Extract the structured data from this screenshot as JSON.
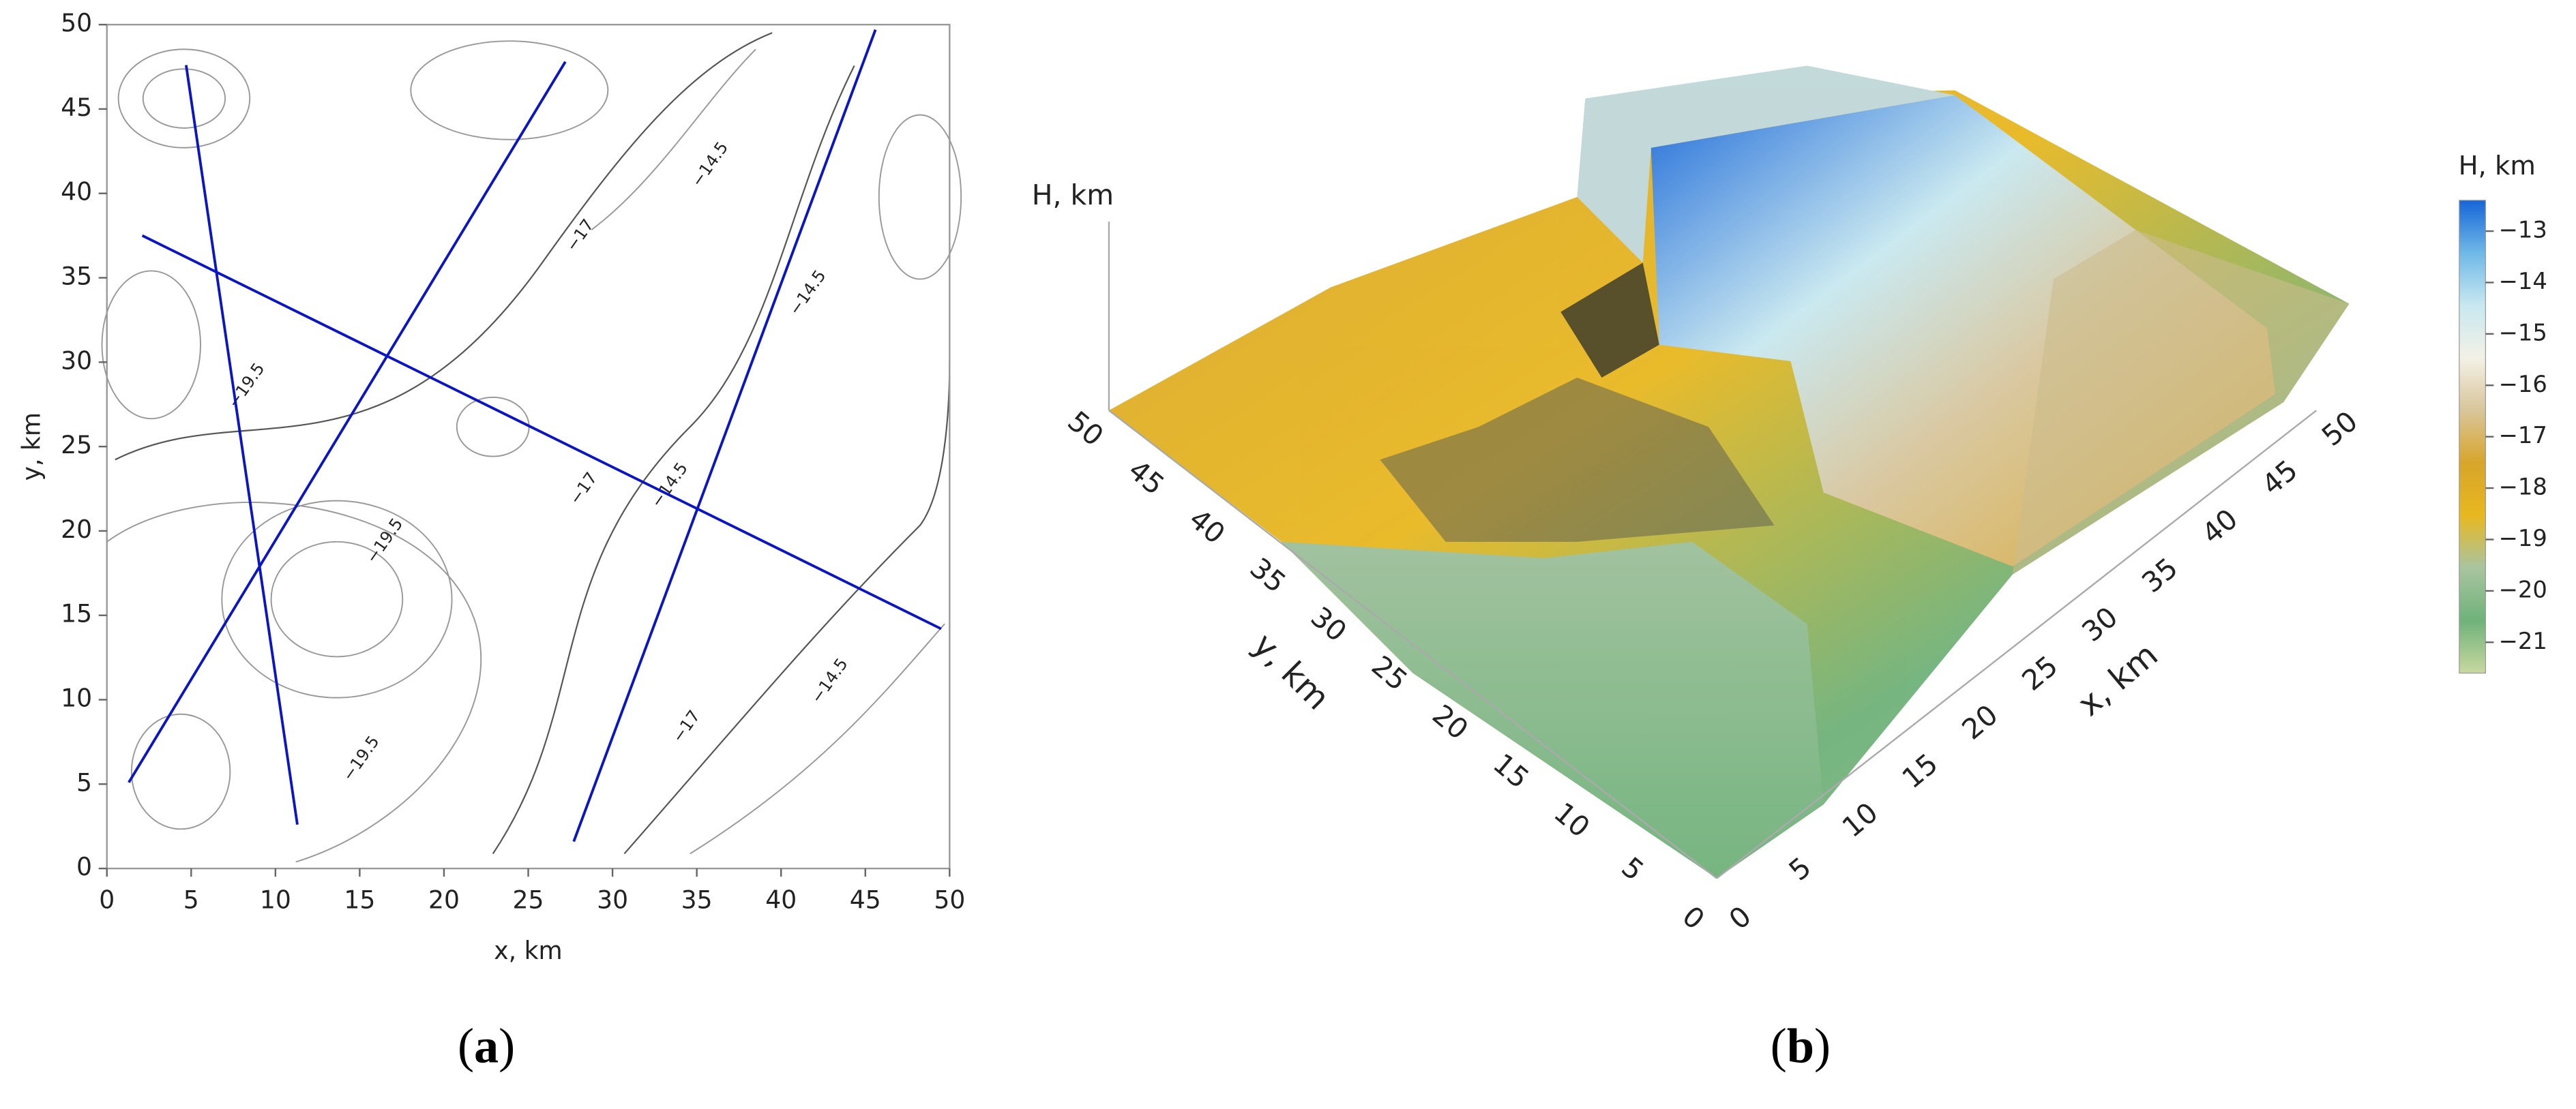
{
  "chart_data": [
    {
      "type": "contour",
      "panel_label": "a",
      "xlabel": "x, km",
      "ylabel": "y, km",
      "xlim": [
        0,
        50
      ],
      "ylim": [
        0,
        50
      ],
      "xticks": [
        0,
        5,
        10,
        15,
        20,
        25,
        30,
        35,
        40,
        45,
        50
      ],
      "yticks": [
        0,
        5,
        10,
        15,
        20,
        25,
        30,
        35,
        40,
        45,
        50
      ],
      "line_color": "#0a14c8",
      "profiles": [
        {
          "x": [
            4.7,
            11.3
          ],
          "y": [
            47.6,
            2.6
          ]
        },
        {
          "x": [
            1.3,
            27.2
          ],
          "y": [
            5.1,
            47.8
          ]
        },
        {
          "x": [
            2.1,
            49.5
          ],
          "y": [
            37.5,
            14.2
          ]
        },
        {
          "x": [
            27.7,
            45.6
          ],
          "y": [
            1.6,
            49.7
          ]
        }
      ],
      "contour_labels": [
        {
          "x": 35.8,
          "y": 41.7,
          "label": "−14.5"
        },
        {
          "x": 28.1,
          "y": 37.5,
          "label": "−17"
        },
        {
          "x": 41.6,
          "y": 34.1,
          "label": "−14.5"
        },
        {
          "x": 8.3,
          "y": 28.6,
          "label": "−19.5"
        },
        {
          "x": 28.3,
          "y": 22.5,
          "label": "−17"
        },
        {
          "x": 33.4,
          "y": 22.7,
          "label": "−14.5"
        },
        {
          "x": 16.5,
          "y": 19.4,
          "label": "−19.5"
        },
        {
          "x": 42.9,
          "y": 11.1,
          "label": "−14.5"
        },
        {
          "x": 34.4,
          "y": 8.4,
          "label": "−17"
        },
        {
          "x": 15.1,
          "y": 6.5,
          "label": "−19.5"
        }
      ]
    },
    {
      "type": "surface3d",
      "panel_label": "b",
      "xlabel": "x, km",
      "ylabel": "y, km",
      "zlabel": "H, km",
      "xlim": [
        0,
        50
      ],
      "ylim": [
        0,
        50
      ],
      "xticks": [
        0,
        5,
        10,
        15,
        20,
        25,
        30,
        35,
        40,
        45,
        50
      ],
      "yticks": [
        0,
        5,
        10,
        15,
        20,
        25,
        30,
        35,
        40,
        45,
        50
      ],
      "colorbar_title": "H, km",
      "zlim": [
        -21.6,
        -12.4
      ],
      "colorscale": [
        "#c8d8a0",
        "#6fb27a",
        "#a9c4a0",
        "#e8b820",
        "#d7a52a",
        "#d8c59a",
        "#f3f1e6",
        "#c8e8f0",
        "#6fb8e8",
        "#1565d8"
      ],
      "colorbar_ticks": [
        {
          "value": -13,
          "label": "−13"
        },
        {
          "value": -14,
          "label": "−14"
        },
        {
          "value": -15,
          "label": "−15"
        },
        {
          "value": -16,
          "label": "−16"
        },
        {
          "value": -17,
          "label": "−17"
        },
        {
          "value": -18,
          "label": "−18"
        },
        {
          "value": -19,
          "label": "−19"
        },
        {
          "value": -20,
          "label": "−20"
        },
        {
          "value": -21,
          "label": "−21"
        }
      ]
    }
  ]
}
